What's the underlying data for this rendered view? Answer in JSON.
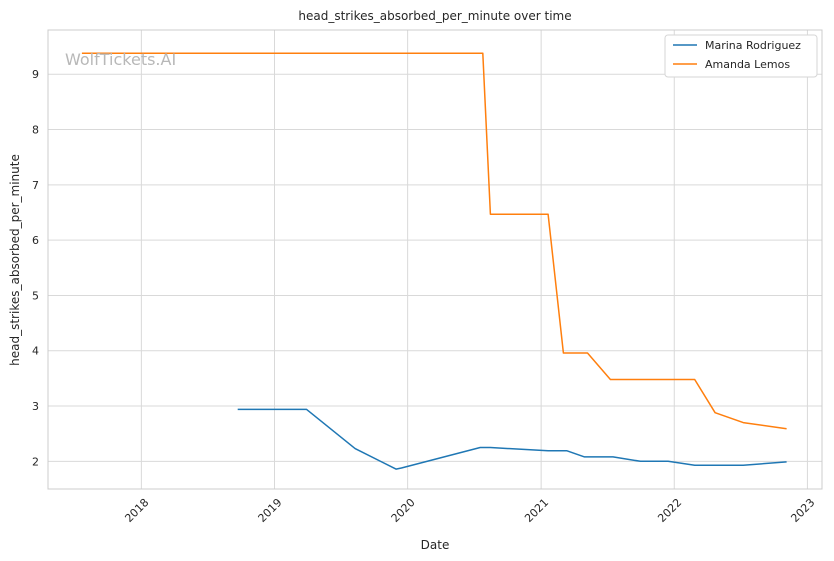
{
  "chart_data": {
    "type": "line",
    "title": "head_strikes_absorbed_per_minute over time",
    "xlabel": "Date",
    "ylabel": "head_strikes_absorbed_per_minute",
    "watermark": "WolfTickets.AI",
    "xlim": [
      "2017-04-20",
      "2023-02-10"
    ],
    "ylim": [
      1.5,
      9.8
    ],
    "x_ticks": [
      "2018",
      "2019",
      "2020",
      "2021",
      "2022",
      "2023"
    ],
    "x_tick_dates": [
      "2018-01-01",
      "2019-01-01",
      "2020-01-01",
      "2021-01-01",
      "2022-01-01",
      "2023-01-01"
    ],
    "y_ticks": [
      2,
      3,
      4,
      5,
      6,
      7,
      8,
      9
    ],
    "grid": true,
    "legend_position": "top-right",
    "colors": {
      "Marina Rodriguez": "#1f77b4",
      "Amanda Lemos": "#ff7f0e"
    },
    "series": [
      {
        "name": "Marina Rodriguez",
        "points": [
          [
            "2018-09-22",
            2.94
          ],
          [
            "2019-03-30",
            2.94
          ],
          [
            "2019-08-10",
            2.23
          ],
          [
            "2019-11-30",
            1.86
          ],
          [
            "2019-12-15",
            1.88
          ],
          [
            "2020-07-18",
            2.25
          ],
          [
            "2020-08-15",
            2.25
          ],
          [
            "2021-01-20",
            2.19
          ],
          [
            "2021-03-13",
            2.19
          ],
          [
            "2021-04-30",
            2.08
          ],
          [
            "2021-07-17",
            2.08
          ],
          [
            "2021-09-30",
            2.0
          ],
          [
            "2021-12-15",
            2.0
          ],
          [
            "2022-02-26",
            1.93
          ],
          [
            "2022-07-09",
            1.93
          ],
          [
            "2022-11-05",
            1.99
          ]
        ]
      },
      {
        "name": "Amanda Lemos",
        "points": [
          [
            "2017-07-22",
            9.38
          ],
          [
            "2020-07-25",
            9.38
          ],
          [
            "2020-08-15",
            6.47
          ],
          [
            "2021-01-20",
            6.47
          ],
          [
            "2021-03-03",
            3.96
          ],
          [
            "2021-05-08",
            3.96
          ],
          [
            "2021-07-10",
            3.48
          ],
          [
            "2022-02-26",
            3.48
          ],
          [
            "2022-04-23",
            2.88
          ],
          [
            "2022-07-09",
            2.7
          ],
          [
            "2022-11-05",
            2.59
          ]
        ]
      }
    ]
  }
}
